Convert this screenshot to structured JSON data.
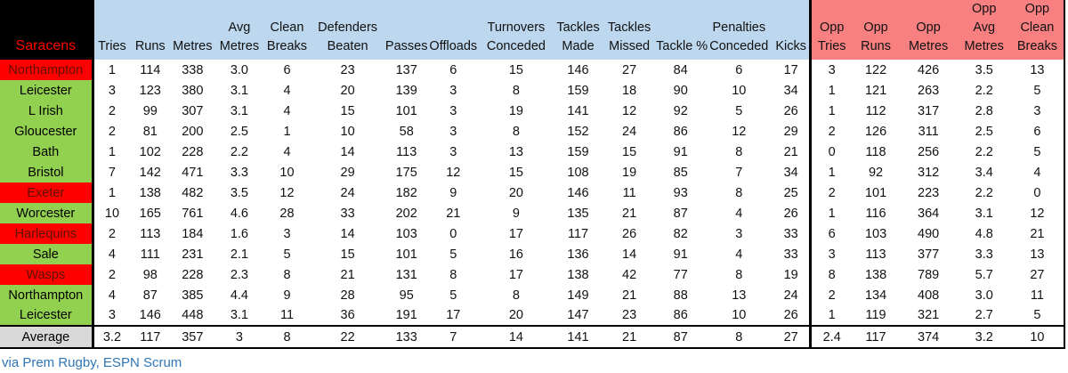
{
  "title": {
    "team": "Saracens"
  },
  "footer": {
    "source": "via Prem Rugby, ESPN Scrum"
  },
  "colors": {
    "header_blue": "#BDD7EE",
    "header_salmon": "#F98080",
    "win_green": "#92D050",
    "loss_red": "#FF0000",
    "loss_red_text": "#5f1000",
    "average_gray": "#D9D9D9",
    "title_red": "#FF0000",
    "source_link_blue": "#2E75B6",
    "corner_black": "#000000"
  },
  "chart_data": {
    "type": "table",
    "title": "Saracens",
    "corner_label": "Saracens",
    "headers": [
      {
        "lines": [
          "Tries"
        ],
        "opp": false
      },
      {
        "lines": [
          "Runs"
        ],
        "opp": false
      },
      {
        "lines": [
          "Metres"
        ],
        "opp": false
      },
      {
        "lines": [
          "Avg",
          "Metres"
        ],
        "opp": false
      },
      {
        "lines": [
          "Clean",
          "Breaks"
        ],
        "opp": false
      },
      {
        "lines": [
          "Defenders",
          "Beaten"
        ],
        "opp": false
      },
      {
        "lines": [
          "Passes"
        ],
        "opp": false
      },
      {
        "lines": [
          "Offloads"
        ],
        "opp": false
      },
      {
        "lines": [
          "Turnovers",
          "Conceded"
        ],
        "opp": false
      },
      {
        "lines": [
          "Tackles",
          "Made"
        ],
        "opp": false
      },
      {
        "lines": [
          "Tackles",
          "Missed"
        ],
        "opp": false
      },
      {
        "lines": [
          "Tackle %"
        ],
        "opp": false
      },
      {
        "lines": [
          "Penalties",
          "Conceded"
        ],
        "opp": false
      },
      {
        "lines": [
          "Kicks"
        ],
        "opp": false
      },
      {
        "lines": [
          "Opp",
          "Tries"
        ],
        "opp": true
      },
      {
        "lines": [
          "Opp",
          "Runs"
        ],
        "opp": true
      },
      {
        "lines": [
          "Opp",
          "Metres"
        ],
        "opp": true
      },
      {
        "lines": [
          "Opp",
          "Avg",
          "Metres"
        ],
        "opp": true
      },
      {
        "lines": [
          "Opp",
          "Clean",
          "Breaks"
        ],
        "opp": true
      }
    ],
    "rows": [
      {
        "opponent": "Northampton",
        "highlight": "red",
        "values": [
          "1",
          "114",
          "338",
          "3.0",
          "6",
          "23",
          "137",
          "6",
          "15",
          "146",
          "27",
          "84",
          "6",
          "17",
          "3",
          "122",
          "426",
          "3.5",
          "13"
        ]
      },
      {
        "opponent": "Leicester",
        "highlight": "green",
        "values": [
          "3",
          "123",
          "380",
          "3.1",
          "4",
          "20",
          "139",
          "3",
          "8",
          "159",
          "18",
          "90",
          "10",
          "34",
          "1",
          "121",
          "263",
          "2.2",
          "5"
        ]
      },
      {
        "opponent": "L Irish",
        "highlight": "green",
        "values": [
          "2",
          "99",
          "307",
          "3.1",
          "4",
          "15",
          "101",
          "3",
          "19",
          "141",
          "12",
          "92",
          "5",
          "26",
          "1",
          "112",
          "317",
          "2.8",
          "3"
        ]
      },
      {
        "opponent": "Gloucester",
        "highlight": "green",
        "values": [
          "2",
          "81",
          "200",
          "2.5",
          "1",
          "10",
          "58",
          "3",
          "8",
          "152",
          "24",
          "86",
          "12",
          "29",
          "2",
          "126",
          "311",
          "2.5",
          "6"
        ]
      },
      {
        "opponent": "Bath",
        "highlight": "green",
        "values": [
          "1",
          "102",
          "228",
          "2.2",
          "4",
          "14",
          "113",
          "3",
          "13",
          "159",
          "15",
          "91",
          "8",
          "21",
          "0",
          "118",
          "256",
          "2.2",
          "5"
        ]
      },
      {
        "opponent": "Bristol",
        "highlight": "green",
        "values": [
          "7",
          "142",
          "471",
          "3.3",
          "10",
          "29",
          "175",
          "12",
          "15",
          "108",
          "19",
          "85",
          "7",
          "34",
          "1",
          "92",
          "312",
          "3.4",
          "4"
        ]
      },
      {
        "opponent": "Exeter",
        "highlight": "red",
        "values": [
          "1",
          "138",
          "482",
          "3.5",
          "12",
          "24",
          "182",
          "9",
          "20",
          "146",
          "11",
          "93",
          "8",
          "25",
          "2",
          "101",
          "223",
          "2.2",
          "0"
        ]
      },
      {
        "opponent": "Worcester",
        "highlight": "green",
        "values": [
          "10",
          "165",
          "761",
          "4.6",
          "28",
          "33",
          "202",
          "21",
          "9",
          "135",
          "21",
          "87",
          "4",
          "26",
          "1",
          "116",
          "364",
          "3.1",
          "12"
        ]
      },
      {
        "opponent": "Harlequins",
        "highlight": "red",
        "values": [
          "2",
          "113",
          "184",
          "1.6",
          "3",
          "14",
          "103",
          "0",
          "17",
          "117",
          "26",
          "82",
          "3",
          "33",
          "6",
          "103",
          "490",
          "4.8",
          "21"
        ]
      },
      {
        "opponent": "Sale",
        "highlight": "green",
        "values": [
          "4",
          "111",
          "231",
          "2.1",
          "5",
          "15",
          "101",
          "5",
          "16",
          "136",
          "14",
          "91",
          "4",
          "33",
          "3",
          "113",
          "377",
          "3.3",
          "13"
        ]
      },
      {
        "opponent": "Wasps",
        "highlight": "red",
        "values": [
          "2",
          "98",
          "228",
          "2.3",
          "8",
          "21",
          "131",
          "8",
          "17",
          "138",
          "42",
          "77",
          "8",
          "19",
          "8",
          "138",
          "789",
          "5.7",
          "27"
        ]
      },
      {
        "opponent": "Northampton",
        "highlight": "green",
        "values": [
          "4",
          "87",
          "385",
          "4.4",
          "9",
          "28",
          "95",
          "5",
          "8",
          "149",
          "21",
          "88",
          "13",
          "24",
          "2",
          "134",
          "408",
          "3.0",
          "11"
        ]
      },
      {
        "opponent": "Leicester",
        "highlight": "green",
        "values": [
          "3",
          "146",
          "448",
          "3.1",
          "11",
          "36",
          "191",
          "17",
          "20",
          "147",
          "23",
          "86",
          "10",
          "26",
          "1",
          "119",
          "321",
          "2.7",
          "5"
        ]
      }
    ],
    "average": {
      "label": "Average",
      "values": [
        "3.2",
        "117",
        "357",
        "3",
        "8",
        "22",
        "133",
        "7",
        "14",
        "141",
        "21",
        "87",
        "8",
        "27",
        "2.4",
        "117",
        "374",
        "3.2",
        "10"
      ]
    },
    "layout_hints": {
      "first_column": "opponent names",
      "opp_section_divider": "thick black vertical line before Opp Tries",
      "average_row_borders": "thick black top and bottom"
    }
  }
}
